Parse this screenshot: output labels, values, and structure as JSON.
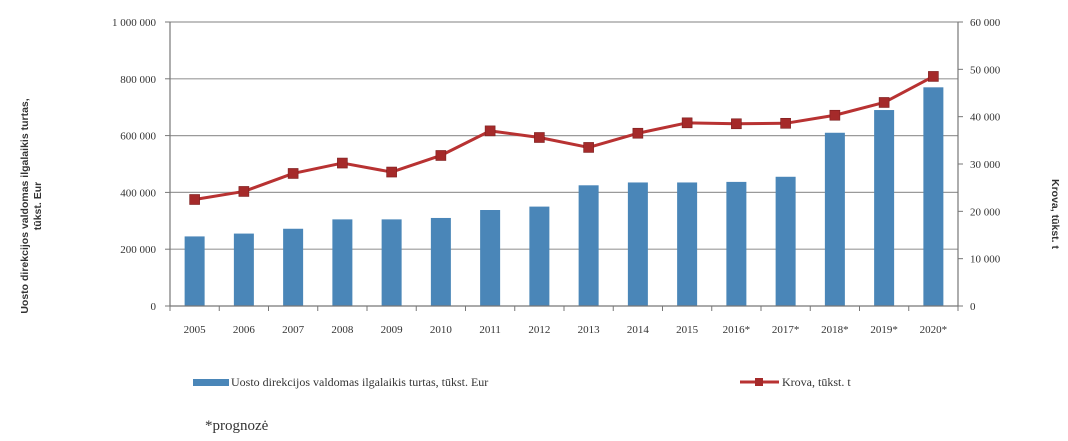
{
  "chart_data": {
    "type": "bar+line",
    "categories": [
      "2005",
      "2006",
      "2007",
      "2008",
      "2009",
      "2010",
      "2011",
      "2012",
      "2013",
      "2014",
      "2015",
      "2016*",
      "2017*",
      "2018*",
      "2019*",
      "2020*"
    ],
    "series": [
      {
        "name": "Uosto direkcijos valdomas ilgalaikis turtas, tūkst. Eur",
        "type": "bar",
        "axis": "left",
        "color": "#4a86b8",
        "values": [
          245000,
          255000,
          272000,
          305000,
          305000,
          310000,
          338000,
          350000,
          425000,
          435000,
          435000,
          437000,
          455000,
          610000,
          690000,
          770000
        ]
      },
      {
        "name": "Krova, tūkst. t",
        "type": "line",
        "axis": "right",
        "color": "#b83232",
        "marker_color": "#a52a2a",
        "values": [
          22500,
          24200,
          28000,
          30200,
          28300,
          31800,
          37000,
          35600,
          33500,
          36500,
          38700,
          38500,
          38600,
          40300,
          43000,
          48500
        ]
      }
    ],
    "y_left": {
      "label": "Uosto direkcijos valdomas ilgalaikis turtas, tūkst. Eur",
      "range": [
        0,
        1000000
      ],
      "ticks": [
        "0",
        "200 000",
        "400 000",
        "600 000",
        "800 000",
        "1 000 000"
      ]
    },
    "y_right": {
      "label": "Krova, tūkst. t",
      "range": [
        0,
        60000
      ],
      "ticks": [
        "0",
        "10 000",
        "20 000",
        "30 000",
        "40 000",
        "50 000",
        "60 000"
      ]
    },
    "grid": true,
    "legend_position": "bottom",
    "legend": [
      {
        "label": "Uosto direkcijos valdomas ilgalaikis turtas, tūkst. Eur",
        "kind": "bar",
        "color": "#4a86b8"
      },
      {
        "label": "Krova, tūkst. t",
        "kind": "line",
        "color": "#b83232"
      }
    ],
    "footnote": "*prognozė"
  }
}
